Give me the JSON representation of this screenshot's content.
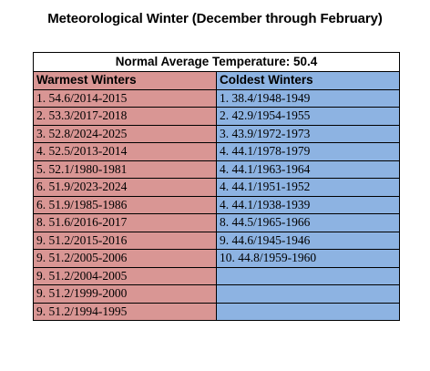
{
  "title": "Meteorological Winter (December through February)",
  "normal_label": "Normal Average Temperature: 50.4",
  "columns": {
    "warmest": "Warmest Winters",
    "coldest": "Coldest Winters"
  },
  "rows": [
    {
      "warm": "1. 54.6/2014-2015",
      "cold": "1. 38.4/1948-1949"
    },
    {
      "warm": "2. 53.3/2017-2018",
      "cold": "2. 42.9/1954-1955"
    },
    {
      "warm": "3. 52.8/2024-2025",
      "cold": "3. 43.9/1972-1973"
    },
    {
      "warm": "4. 52.5/2013-2014",
      "cold": "4. 44.1/1978-1979"
    },
    {
      "warm": "5. 52.1/1980-1981",
      "cold": "4. 44.1/1963-1964"
    },
    {
      "warm": "6. 51.9/2023-2024",
      "cold": "4. 44.1/1951-1952"
    },
    {
      "warm": "6. 51.9/1985-1986",
      "cold": "4. 44.1/1938-1939"
    },
    {
      "warm": "8. 51.6/2016-2017",
      "cold": "8. 44.5/1965-1966"
    },
    {
      "warm": "9. 51.2/2015-2016",
      "cold": "9. 44.6/1945-1946"
    },
    {
      "warm": "9. 51.2/2005-2006",
      "cold": "10. 44.8/1959-1960"
    },
    {
      "warm": "9. 51.2/2004-2005",
      "cold": ""
    },
    {
      "warm": "9. 51.2/1999-2000",
      "cold": ""
    },
    {
      "warm": "9. 51.2/1994-1995",
      "cold": ""
    }
  ],
  "colors": {
    "warm": "#d99694",
    "cold": "#8db3e2"
  }
}
